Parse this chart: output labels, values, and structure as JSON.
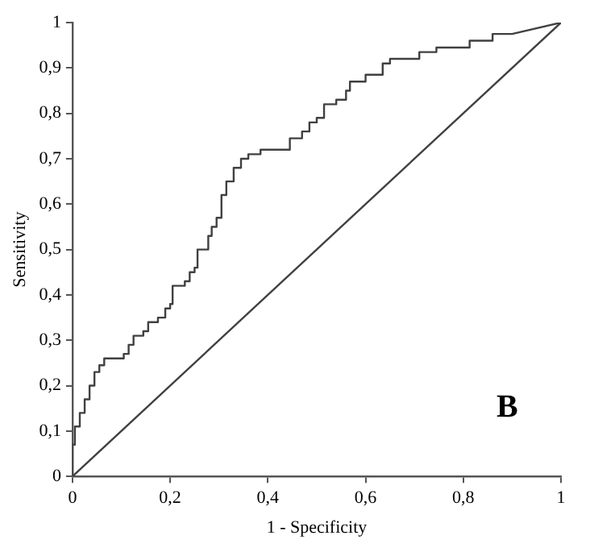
{
  "chart_data": {
    "type": "line",
    "xlabel": "1 - Specificity",
    "ylabel": "Sensitivity",
    "annotations": [
      "B"
    ],
    "xlim": [
      0,
      1
    ],
    "ylim": [
      0,
      1
    ],
    "xticks": [
      0,
      {
        "value": 0.2,
        "label": "0,2"
      },
      {
        "value": 0.4,
        "label": "0,4"
      },
      {
        "value": 0.6,
        "label": "0,6"
      },
      {
        "value": 0.8,
        "label": "0,8"
      },
      1
    ],
    "yticks": [
      0,
      {
        "value": 0.1,
        "label": "0,1"
      },
      {
        "value": 0.2,
        "label": "0,2"
      },
      {
        "value": 0.3,
        "label": "0,3"
      },
      {
        "value": 0.4,
        "label": "0,4"
      },
      {
        "value": 0.5,
        "label": "0,5"
      },
      {
        "value": 0.6,
        "label": "0,6"
      },
      {
        "value": 0.7,
        "label": "0,7"
      },
      {
        "value": 0.8,
        "label": "0,8"
      },
      {
        "value": 0.9,
        "label": "0,9"
      },
      1
    ],
    "grid": false,
    "legend": false,
    "marker": "none",
    "line_style": "solid",
    "series": [
      {
        "color": "#404040",
        "x": [
          0,
          0,
          0.005,
          0.005,
          0.015,
          0.015,
          0.025,
          0.025,
          0.035,
          0.035,
          0.045,
          0.045,
          0.055,
          0.055,
          0.065,
          0.065,
          0.105,
          0.105,
          0.115,
          0.115,
          0.125,
          0.125,
          0.145,
          0.145,
          0.155,
          0.155,
          0.175,
          0.175,
          0.19,
          0.19,
          0.2,
          0.2,
          0.205,
          0.205,
          0.23,
          0.23,
          0.24,
          0.24,
          0.25,
          0.25,
          0.256,
          0.256,
          0.278,
          0.278,
          0.285,
          0.285,
          0.295,
          0.295,
          0.305,
          0.305,
          0.315,
          0.315,
          0.33,
          0.33,
          0.345,
          0.345,
          0.36,
          0.36,
          0.385,
          0.385,
          0.445,
          0.445,
          0.47,
          0.47,
          0.485,
          0.485,
          0.5,
          0.5,
          0.515,
          0.515,
          0.54,
          0.54,
          0.56,
          0.56,
          0.568,
          0.568,
          0.6,
          0.6,
          0.635,
          0.635,
          0.65,
          0.65,
          0.71,
          0.71,
          0.745,
          0.745,
          0.813,
          0.813,
          0.86,
          0.86,
          0.9,
          1
        ],
        "values": [
          0,
          0.07,
          0.07,
          0.11,
          0.11,
          0.14,
          0.14,
          0.17,
          0.17,
          0.2,
          0.2,
          0.23,
          0.23,
          0.245,
          0.245,
          0.26,
          0.26,
          0.27,
          0.27,
          0.29,
          0.29,
          0.31,
          0.31,
          0.32,
          0.32,
          0.34,
          0.34,
          0.35,
          0.35,
          0.37,
          0.37,
          0.38,
          0.38,
          0.42,
          0.42,
          0.43,
          0.43,
          0.45,
          0.45,
          0.46,
          0.46,
          0.5,
          0.5,
          0.53,
          0.53,
          0.55,
          0.55,
          0.57,
          0.57,
          0.62,
          0.62,
          0.65,
          0.65,
          0.68,
          0.68,
          0.7,
          0.7,
          0.71,
          0.71,
          0.72,
          0.72,
          0.745,
          0.745,
          0.76,
          0.76,
          0.78,
          0.78,
          0.79,
          0.79,
          0.82,
          0.82,
          0.83,
          0.83,
          0.85,
          0.85,
          0.87,
          0.87,
          0.885,
          0.885,
          0.91,
          0.91,
          0.92,
          0.92,
          0.935,
          0.935,
          0.945,
          0.945,
          0.96,
          0.96,
          0.975,
          0.975,
          1
        ]
      },
      {
        "color": "#404040",
        "x": [
          0,
          1
        ],
        "values": [
          0,
          1
        ]
      }
    ]
  }
}
